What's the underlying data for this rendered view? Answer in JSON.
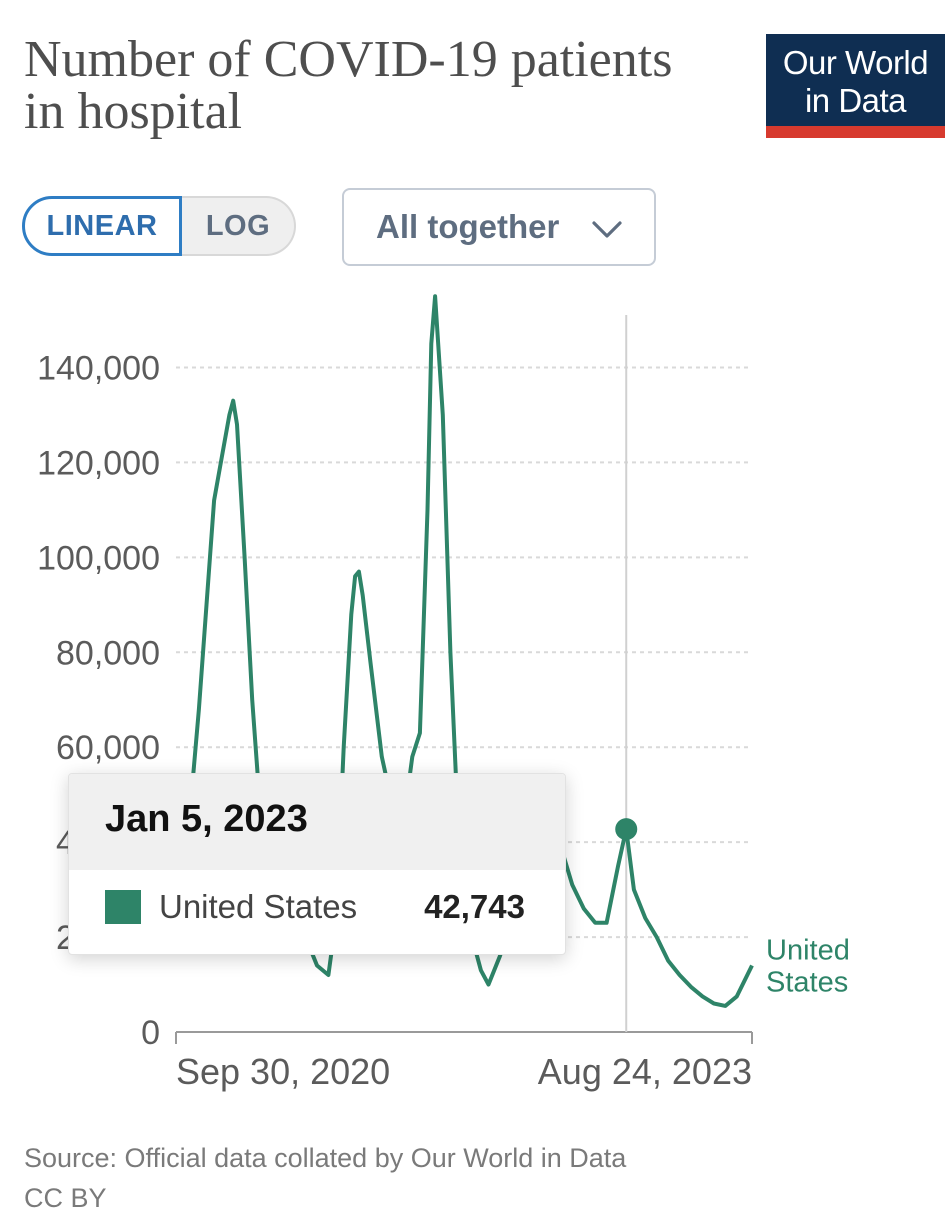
{
  "header": {
    "title": "Number of COVID-19 patients in hospital",
    "logo_line1": "Our World",
    "logo_line2": "in Data"
  },
  "controls": {
    "scale_options": [
      "LINEAR",
      "LOG"
    ],
    "scale_selected": "LINEAR",
    "facet_select": "All together",
    "facet_icon": "chevron-down-icon"
  },
  "tooltip": {
    "date": "Jan 5, 2023",
    "entity": "United States",
    "value": "42,743",
    "swatch_color": "#2e8468"
  },
  "footer": {
    "source": "Source: Official data collated by Our World in Data",
    "license": "CC BY"
  },
  "chart_data": {
    "type": "line",
    "title": "Number of COVID-19 patients in hospital",
    "xlabel": "",
    "ylabel": "",
    "x_range": [
      "2020-09-30",
      "2023-08-24"
    ],
    "x_tick_labels": [
      "Sep 30, 2020",
      "Aug 24, 2023"
    ],
    "ylim": [
      0,
      150000
    ],
    "y_ticks": [
      0,
      20000,
      40000,
      60000,
      80000,
      100000,
      120000,
      140000
    ],
    "y_tick_labels": [
      "0",
      "20,000",
      "40,000",
      "60,000",
      "80,000",
      "100,000",
      "120,000",
      "140,000"
    ],
    "grid": "horizontal dashed",
    "line_color": "#2e8468",
    "highlight": {
      "x": "2023-01-05",
      "y": 42743
    },
    "series": [
      {
        "name": "United States",
        "x": [
          "2020-09-30",
          "2020-10-21",
          "2020-11-11",
          "2020-11-25",
          "2020-12-09",
          "2020-12-23",
          "2021-01-06",
          "2021-01-13",
          "2021-01-20",
          "2021-02-03",
          "2021-02-17",
          "2021-03-03",
          "2021-03-24",
          "2021-04-14",
          "2021-05-05",
          "2021-05-26",
          "2021-06-16",
          "2021-07-07",
          "2021-07-21",
          "2021-08-04",
          "2021-08-18",
          "2021-08-25",
          "2021-09-01",
          "2021-09-08",
          "2021-09-22",
          "2021-10-13",
          "2021-11-03",
          "2021-11-24",
          "2021-12-08",
          "2021-12-22",
          "2022-01-05",
          "2022-01-12",
          "2022-01-19",
          "2022-02-02",
          "2022-02-16",
          "2022-03-02",
          "2022-03-23",
          "2022-04-13",
          "2022-04-27",
          "2022-05-18",
          "2022-06-08",
          "2022-07-06",
          "2022-07-27",
          "2022-08-17",
          "2022-09-07",
          "2022-09-28",
          "2022-10-19",
          "2022-11-09",
          "2022-11-30",
          "2022-12-21",
          "2023-01-05",
          "2023-01-19",
          "2023-02-09",
          "2023-03-02",
          "2023-03-23",
          "2023-04-13",
          "2023-05-04",
          "2023-05-25",
          "2023-06-15",
          "2023-07-06",
          "2023-07-27",
          "2023-08-24"
        ],
        "y": [
          31000,
          40000,
          68000,
          90000,
          112000,
          121000,
          130000,
          133000,
          128000,
          100000,
          70000,
          48000,
          38000,
          40000,
          32000,
          20000,
          14000,
          12000,
          24000,
          60000,
          88000,
          96000,
          97000,
          92000,
          78000,
          58000,
          47000,
          46000,
          58000,
          63000,
          110000,
          145000,
          155000,
          130000,
          80000,
          44000,
          22000,
          13000,
          10000,
          16000,
          23000,
          34000,
          43000,
          45000,
          39000,
          31000,
          26000,
          23000,
          23000,
          35000,
          42743,
          30000,
          24000,
          20000,
          15000,
          12000,
          9500,
          7500,
          6000,
          5500,
          7500,
          14000
        ]
      }
    ],
    "series_label": "United States"
  }
}
